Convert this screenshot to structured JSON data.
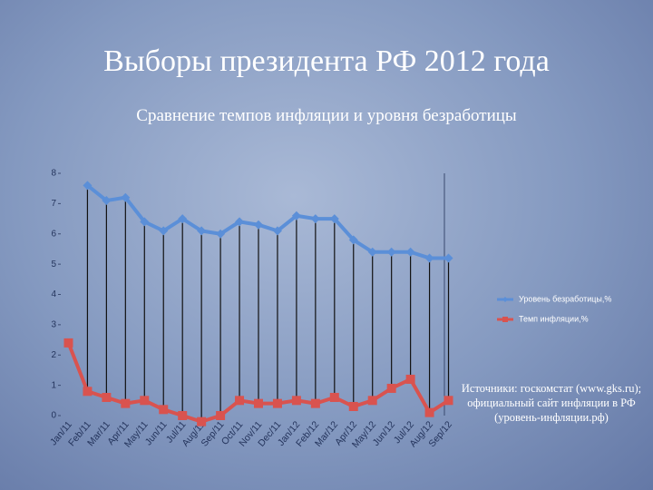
{
  "slide_title": "Выборы президента РФ 2012 года",
  "source": "Источники: госкомстат (www.gks.ru); официальный сайт инфляции в РФ (уровень-инфляции.рф)",
  "chart_data": {
    "type": "line",
    "title": "Сравнение темпов инфляции и уровня безработицы",
    "categories": [
      "Jan/11",
      "Feb/11",
      "Mar/11",
      "Apr/11",
      "May/11",
      "Jun/11",
      "Jul/11",
      "Aug/11",
      "Sep/11",
      "Oct/11",
      "Nov/11",
      "Dec/11",
      "Jan/12",
      "Feb/12",
      "Mar/12",
      "Apr/12",
      "May/12",
      "Jun/12",
      "Jul/12",
      "Aug/12",
      "Sep/12"
    ],
    "series": [
      {
        "name": "Уровень безработицы,%",
        "color": "#5b8fd8",
        "marker": "diamond",
        "values": [
          null,
          7.6,
          7.1,
          7.2,
          6.4,
          6.1,
          6.5,
          6.1,
          6.0,
          6.4,
          6.3,
          6.1,
          6.6,
          6.5,
          6.5,
          5.8,
          5.4,
          5.4,
          5.4,
          5.2,
          5.2
        ]
      },
      {
        "name": "Темп инфляции,%",
        "color": "#d9534f",
        "marker": "square",
        "values": [
          2.4,
          0.8,
          0.6,
          0.4,
          0.5,
          0.2,
          0.0,
          -0.2,
          0.0,
          0.5,
          0.4,
          0.4,
          0.5,
          0.4,
          0.6,
          0.3,
          0.5,
          0.9,
          1.2,
          0.1,
          0.5
        ]
      }
    ],
    "ylim": [
      0,
      8
    ],
    "yticks": [
      0,
      1,
      2,
      3,
      4,
      5,
      6,
      7,
      8
    ],
    "grid": false,
    "drop_lines": true,
    "legend": "right"
  }
}
